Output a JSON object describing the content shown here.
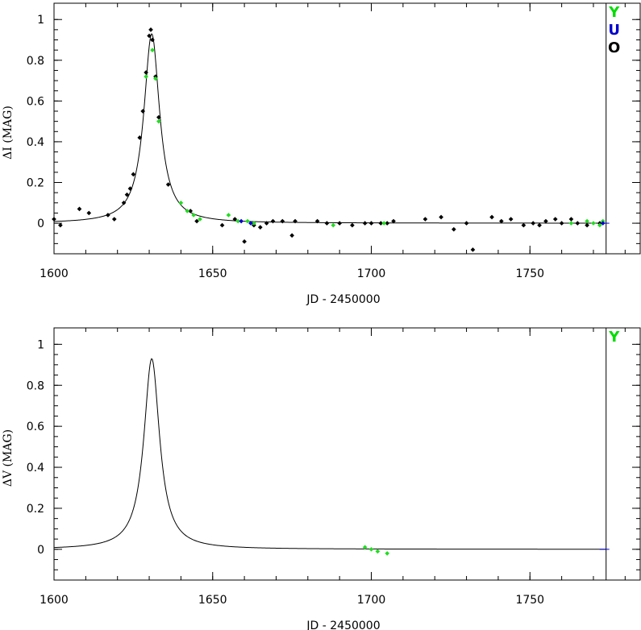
{
  "chart_data": [
    {
      "type": "scatter",
      "xlabel": "JD - 2450000",
      "ylabel": "ΔI (MAG)",
      "xlim": [
        1600,
        1785
      ],
      "ylim": [
        -0.15,
        1.08
      ],
      "x_ticks": [
        "1600",
        "1650",
        "1700",
        "1750"
      ],
      "y_ticks": [
        "0",
        "0.2",
        "0.4",
        "0.6",
        "0.8",
        "1"
      ],
      "marker_line_x": 1774,
      "model": {
        "t0": 1630.8,
        "tau": 3.0,
        "peak": 0.93
      },
      "legend": [
        {
          "label": "Y",
          "color": "#00dd00"
        },
        {
          "label": "U",
          "color": "#0000cc"
        },
        {
          "label": "O",
          "color": "#000000"
        }
      ],
      "series": [
        {
          "name": "O",
          "color": "#000000",
          "points": [
            [
              1600,
              0.02
            ],
            [
              1602,
              -0.01
            ],
            [
              1608,
              0.07
            ],
            [
              1611,
              0.05
            ],
            [
              1617,
              0.04
            ],
            [
              1619,
              0.02
            ],
            [
              1622,
              0.1
            ],
            [
              1623,
              0.14
            ],
            [
              1624,
              0.17
            ],
            [
              1625,
              0.24
            ],
            [
              1627,
              0.42
            ],
            [
              1628,
              0.55
            ],
            [
              1629,
              0.74
            ],
            [
              1630,
              0.92
            ],
            [
              1630.5,
              0.95
            ],
            [
              1631,
              0.9
            ],
            [
              1632,
              0.72
            ],
            [
              1633,
              0.52
            ],
            [
              1636,
              0.19
            ],
            [
              1643,
              0.06
            ],
            [
              1645,
              0.01
            ],
            [
              1653,
              -0.01
            ],
            [
              1657,
              0.02
            ],
            [
              1660,
              -0.09
            ],
            [
              1663,
              -0.01
            ],
            [
              1665,
              -0.02
            ],
            [
              1667,
              0.0
            ],
            [
              1669,
              0.01
            ],
            [
              1672,
              0.01
            ],
            [
              1675,
              -0.06
            ],
            [
              1676,
              0.01
            ],
            [
              1683,
              0.01
            ],
            [
              1686,
              0.0
            ],
            [
              1690,
              0.0
            ],
            [
              1694,
              -0.01
            ],
            [
              1698,
              0.0
            ],
            [
              1700,
              0.0
            ],
            [
              1703,
              0.0
            ],
            [
              1705,
              0.0
            ],
            [
              1707,
              0.01
            ],
            [
              1717,
              0.02
            ],
            [
              1722,
              0.03
            ],
            [
              1726,
              -0.03
            ],
            [
              1730,
              0.0
            ],
            [
              1732,
              -0.13
            ],
            [
              1738,
              0.03
            ],
            [
              1741,
              0.01
            ],
            [
              1744,
              0.02
            ],
            [
              1748,
              -0.01
            ],
            [
              1751,
              0.0
            ],
            [
              1753,
              -0.01
            ],
            [
              1755,
              0.01
            ],
            [
              1758,
              0.02
            ],
            [
              1760,
              0.0
            ],
            [
              1763,
              0.02
            ],
            [
              1765,
              0.0
            ],
            [
              1768,
              -0.01
            ],
            [
              1772,
              0.0
            ]
          ]
        },
        {
          "name": "Y",
          "color": "#22dd22",
          "points": [
            [
              1629,
              0.72
            ],
            [
              1631,
              0.85
            ],
            [
              1632,
              0.71
            ],
            [
              1633,
              0.5
            ],
            [
              1640,
              0.1
            ],
            [
              1642,
              0.06
            ],
            [
              1644,
              0.04
            ],
            [
              1646,
              0.02
            ],
            [
              1655,
              0.04
            ],
            [
              1658,
              0.01
            ],
            [
              1661,
              0.01
            ],
            [
              1663,
              0.0
            ],
            [
              1688,
              -0.01
            ],
            [
              1704,
              0.0
            ],
            [
              1763,
              0.0
            ],
            [
              1768,
              0.01
            ],
            [
              1770,
              0.0
            ],
            [
              1772,
              -0.01
            ],
            [
              1773,
              0.01
            ]
          ]
        },
        {
          "name": "U",
          "color": "#0000cc",
          "points": [
            [
              1659,
              0.01
            ],
            [
              1662,
              0.0
            ],
            [
              1773,
              0.0
            ]
          ]
        }
      ]
    },
    {
      "type": "scatter",
      "xlabel": "JD - 2450000",
      "ylabel": "ΔV (MAG)",
      "xlim": [
        1600,
        1785
      ],
      "ylim": [
        -0.15,
        1.08
      ],
      "x_ticks": [
        "1600",
        "1650",
        "1700",
        "1750"
      ],
      "y_ticks": [
        "0",
        "0.2",
        "0.4",
        "0.6",
        "0.8",
        "1"
      ],
      "marker_line_x": 1774,
      "model": {
        "t0": 1630.8,
        "tau": 3.0,
        "peak": 0.93
      },
      "legend": [
        {
          "label": "Y",
          "color": "#00dd00"
        }
      ],
      "series": [
        {
          "name": "Y",
          "color": "#22dd22",
          "points": [
            [
              1698,
              0.01
            ],
            [
              1700,
              0.0
            ],
            [
              1702,
              -0.01
            ],
            [
              1705,
              -0.02
            ]
          ]
        }
      ]
    }
  ]
}
